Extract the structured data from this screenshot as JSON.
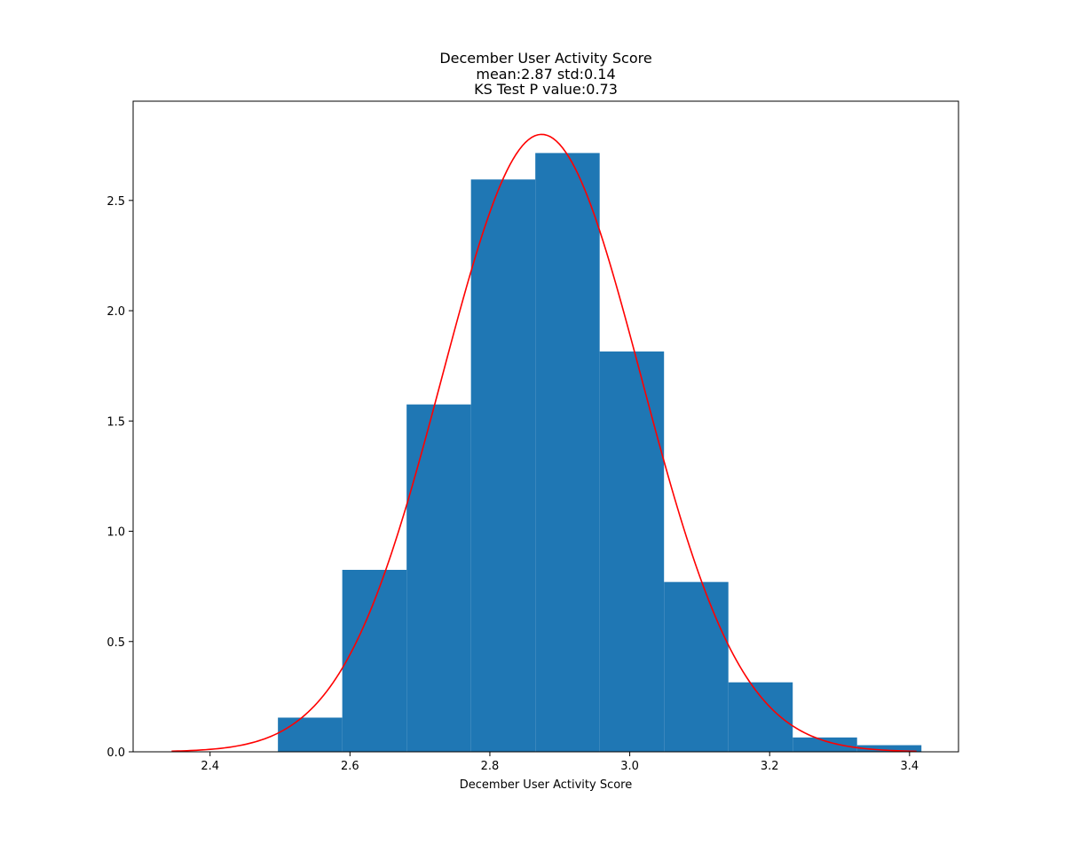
{
  "chart_data": {
    "type": "bar",
    "title_lines": [
      "December User Activity Score",
      "mean:2.87 std:0.14",
      "KS Test P value:0.73"
    ],
    "xlabel": "December User Activity Score",
    "ylabel": "",
    "xlim": [
      2.29,
      3.47
    ],
    "ylim": [
      0,
      2.95
    ],
    "xticks": [
      2.4,
      2.6,
      2.8,
      3.0,
      3.2,
      3.4
    ],
    "xtick_labels": [
      "2.4",
      "2.6",
      "2.8",
      "3.0",
      "3.2",
      "3.4"
    ],
    "yticks": [
      0.0,
      0.5,
      1.0,
      1.5,
      2.0,
      2.5
    ],
    "ytick_labels": [
      "0.0",
      "0.5",
      "1.0",
      "1.5",
      "2.0",
      "2.5"
    ],
    "grid": false,
    "bins": [
      {
        "start": 2.497,
        "end": 2.589,
        "value": 0.155
      },
      {
        "start": 2.589,
        "end": 2.681,
        "value": 0.825
      },
      {
        "start": 2.681,
        "end": 2.773,
        "value": 1.575
      },
      {
        "start": 2.773,
        "end": 2.865,
        "value": 2.595
      },
      {
        "start": 2.865,
        "end": 2.957,
        "value": 2.715
      },
      {
        "start": 2.957,
        "end": 3.049,
        "value": 1.815
      },
      {
        "start": 3.049,
        "end": 3.141,
        "value": 0.77
      },
      {
        "start": 3.141,
        "end": 3.233,
        "value": 0.315
      },
      {
        "start": 3.233,
        "end": 3.325,
        "value": 0.065
      },
      {
        "start": 3.325,
        "end": 3.417,
        "value": 0.03
      }
    ],
    "fit_curve": {
      "type": "normal_pdf",
      "mean": 2.874,
      "std": 0.1425,
      "x_range": [
        2.345,
        3.41
      ]
    },
    "colors": {
      "bars": "#1f77b4",
      "curve": "#ff0000",
      "axes": "#000000"
    }
  }
}
